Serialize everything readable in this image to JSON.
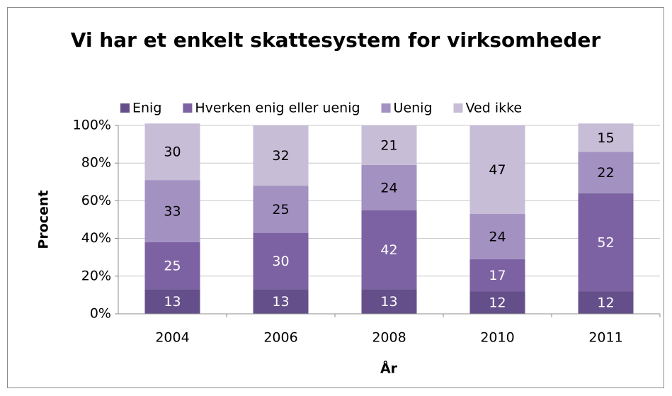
{
  "chart_data": {
    "type": "stacked_bar",
    "title": "Vi har et enkelt skattesystem for virksomheder",
    "x_label": "År",
    "y_label": "Procent",
    "categories": [
      "2004",
      "2006",
      "2008",
      "2010",
      "2011"
    ],
    "series": [
      {
        "name": "Enig",
        "color": "#654f8b",
        "values": [
          13,
          13,
          13,
          12,
          12
        ]
      },
      {
        "name": "Hverken enig eller uenig",
        "color": "#7d62a3",
        "values": [
          25,
          30,
          42,
          17,
          52
        ]
      },
      {
        "name": "Uenig",
        "color": "#a291c1",
        "values": [
          33,
          25,
          24,
          24,
          22
        ]
      },
      {
        "name": "Ved ikke",
        "color": "#c7bdd7",
        "values": [
          30,
          32,
          21,
          47,
          15
        ]
      }
    ],
    "ylim": [
      0,
      100
    ],
    "yticks": [
      {
        "value": 0,
        "label": "0%"
      },
      {
        "value": 20,
        "label": "20%"
      },
      {
        "value": 40,
        "label": "40%"
      },
      {
        "value": 60,
        "label": "60%"
      },
      {
        "value": 80,
        "label": "80%"
      },
      {
        "value": 100,
        "label": "100%"
      }
    ],
    "grid": true,
    "legend": "top"
  }
}
